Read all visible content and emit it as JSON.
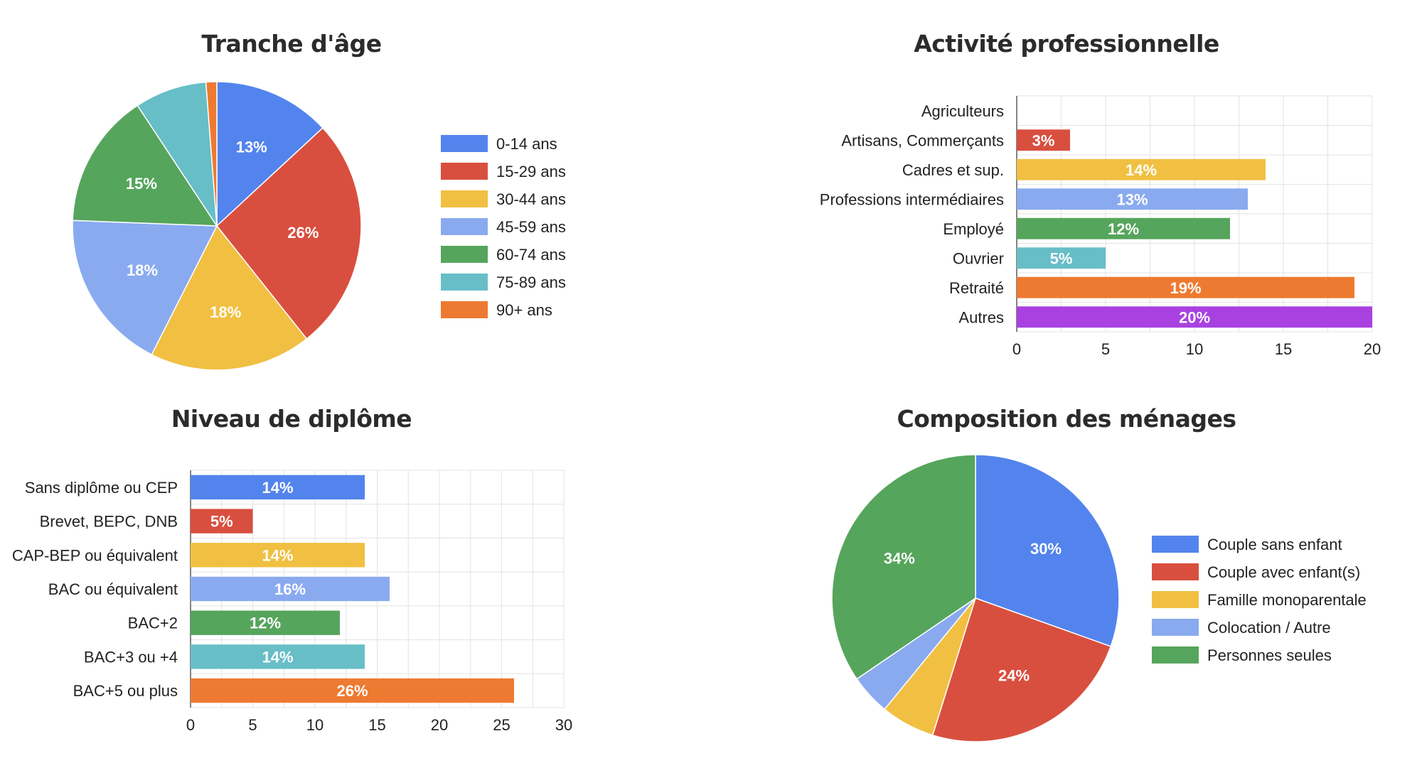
{
  "chart_data": [
    {
      "id": "age",
      "type": "pie",
      "title": "Tranche d'âge",
      "categories": [
        "0-14 ans",
        "15-29 ans",
        "30-44 ans",
        "45-59 ans",
        "60-74 ans",
        "75-89 ans",
        "90+ ans"
      ],
      "values": [
        13,
        26,
        18,
        18,
        15,
        8,
        1.2
      ],
      "labels": [
        "13%",
        "26%",
        "18%",
        "18%",
        "15%",
        "",
        ""
      ],
      "colors": [
        "#5384ed",
        "#d94f3f",
        "#f1c042",
        "#8aaaf0",
        "#56a55c",
        "#67bec7",
        "#ee7a31"
      ],
      "legend": "right"
    },
    {
      "id": "activite",
      "type": "bar",
      "orientation": "horizontal",
      "title": "Activité professionnelle",
      "categories": [
        "Agriculteurs",
        "Artisans, Commerçants",
        "Cadres et sup.",
        "Professions intermédiaires",
        "Employé",
        "Ouvrier",
        "Retraité",
        "Autres"
      ],
      "values": [
        0,
        3,
        14,
        13,
        12,
        5,
        19,
        20
      ],
      "labels": [
        "",
        "3%",
        "14%",
        "13%",
        "12%",
        "5%",
        "19%",
        "20%"
      ],
      "colors": [
        "#5384ed",
        "#d94f3f",
        "#f1c042",
        "#8aaaf0",
        "#56a55c",
        "#67bec7",
        "#ee7a31",
        "#a841e0"
      ],
      "xlim": [
        0,
        20
      ],
      "ticks": [
        "0",
        "5",
        "10",
        "15",
        "20"
      ],
      "grid": true
    },
    {
      "id": "diplome",
      "type": "bar",
      "orientation": "horizontal",
      "title": "Niveau de diplôme",
      "categories": [
        "Sans diplôme ou CEP",
        "Brevet, BEPC, DNB",
        "CAP-BEP ou équivalent",
        "BAC ou équivalent",
        "BAC+2",
        "BAC+3 ou +4",
        "BAC+5 ou plus"
      ],
      "values": [
        14,
        5,
        14,
        16,
        12,
        14,
        26
      ],
      "labels": [
        "14%",
        "5%",
        "14%",
        "16%",
        "12%",
        "14%",
        "26%"
      ],
      "colors": [
        "#5384ed",
        "#d94f3f",
        "#f1c042",
        "#8aaaf0",
        "#56a55c",
        "#67bec7",
        "#ee7a31"
      ],
      "xlim": [
        0,
        30
      ],
      "ticks": [
        "0",
        "5",
        "10",
        "15",
        "20",
        "25",
        "30"
      ],
      "grid": true
    },
    {
      "id": "menages",
      "type": "pie",
      "title": "Composition des ménages",
      "categories": [
        "Couple sans enfant",
        "Couple avec enfant(s)",
        "Famille monoparentale",
        "Colocation / Autre",
        "Personnes seules"
      ],
      "values": [
        30,
        24,
        6,
        4.5,
        34
      ],
      "labels": [
        "30%",
        "24%",
        "",
        "",
        "34%"
      ],
      "colors": [
        "#5384ed",
        "#d94f3f",
        "#f1c042",
        "#8aaaf0",
        "#56a55c"
      ],
      "legend": "right"
    }
  ]
}
